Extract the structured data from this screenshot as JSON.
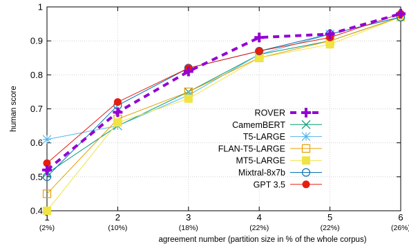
{
  "chart_data": {
    "type": "line",
    "xlabel": "agreement number   (partition size in % of the whole corpus)",
    "ylabel": "human score",
    "x": [
      1,
      2,
      3,
      4,
      5,
      6
    ],
    "x_tick_labels": [
      "1",
      "2",
      "3",
      "4",
      "5",
      "6"
    ],
    "x_sub_labels": [
      "(2%)",
      "(10%)",
      "(18%)",
      "(22%)",
      "(22%)",
      "(26%)"
    ],
    "xlim": [
      1,
      6
    ],
    "ylim": [
      0.4,
      1.0
    ],
    "y_ticks": [
      0.4,
      0.5,
      0.6,
      0.7,
      0.8,
      0.9,
      1.0
    ],
    "y_tick_labels": [
      "0.4",
      "0.5",
      "0.6",
      "0.7",
      "0.8",
      "0.9",
      "1"
    ],
    "grid": true,
    "legend_position": "bottom-right",
    "series": [
      {
        "name": "ROVER",
        "values": [
          0.52,
          0.69,
          0.81,
          0.91,
          0.92,
          0.98
        ],
        "color": "#9400d3",
        "marker": "plus",
        "dashed": true
      },
      {
        "name": "CamemBERT",
        "values": [
          0.51,
          0.65,
          0.75,
          0.86,
          0.9,
          0.97
        ],
        "color": "#009e73",
        "marker": "x"
      },
      {
        "name": "T5-LARGE",
        "values": [
          0.61,
          0.65,
          0.74,
          0.86,
          0.92,
          0.97
        ],
        "color": "#56b4e9",
        "marker": "star"
      },
      {
        "name": "FLAN-T5-LARGE",
        "values": [
          0.45,
          0.67,
          0.75,
          0.85,
          0.9,
          0.97
        ],
        "color": "#e69f00",
        "marker": "square-open"
      },
      {
        "name": "MT5-LARGE",
        "values": [
          0.4,
          0.66,
          0.73,
          0.85,
          0.89,
          0.97
        ],
        "color": "#f0e442",
        "marker": "square-filled"
      },
      {
        "name": "Mixtral-8x7b",
        "values": [
          0.5,
          0.71,
          0.82,
          0.87,
          0.92,
          0.97
        ],
        "color": "#0072b2",
        "marker": "circle-open"
      },
      {
        "name": "GPT 3.5",
        "values": [
          0.54,
          0.72,
          0.82,
          0.87,
          0.91,
          0.98
        ],
        "color": "#e51e10",
        "marker": "circle-filled"
      }
    ]
  }
}
